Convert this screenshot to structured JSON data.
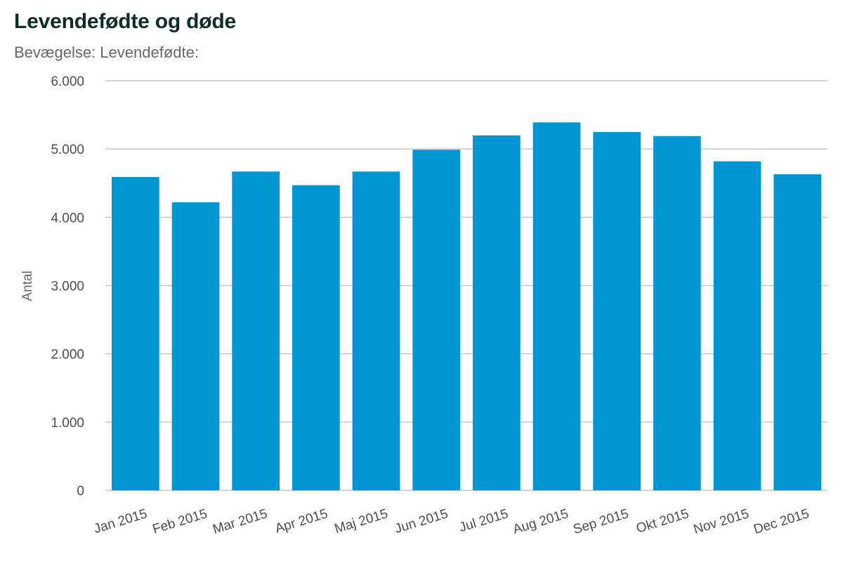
{
  "chart_data": {
    "type": "bar",
    "title": "Levendefødte og døde",
    "subtitle": "Bevægelse: Levendefødte:",
    "xlabel": "",
    "ylabel": "Antal",
    "ylim": [
      0,
      6000
    ],
    "yticks": [
      0,
      1000,
      2000,
      3000,
      4000,
      5000,
      6000
    ],
    "ytick_labels": [
      "0",
      "1.000",
      "2.000",
      "3.000",
      "4.000",
      "5.000",
      "6.000"
    ],
    "grid": true,
    "legend": "none",
    "categories": [
      "Jan 2015",
      "Feb 2015",
      "Mar 2015",
      "Apr 2015",
      "Maj 2015",
      "Jun 2015",
      "Jul 2015",
      "Aug 2015",
      "Sep 2015",
      "Okt 2015",
      "Nov 2015",
      "Dec 2015"
    ],
    "values": [
      4590,
      4220,
      4670,
      4470,
      4670,
      4990,
      5200,
      5390,
      5250,
      5190,
      4820,
      4630
    ],
    "bar_color": "#0096d6",
    "grid_color": "#bfc9cc"
  }
}
